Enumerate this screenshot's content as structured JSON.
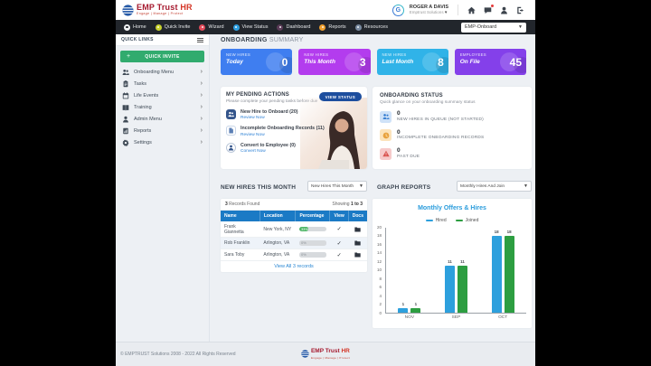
{
  "header": {
    "brand": {
      "emp": "EMP",
      "trust": " Trust ",
      "hr": "HR",
      "tagline": "Engage | Manage | Protect"
    },
    "user": {
      "name": "ROGER A DAVIS",
      "org": "Emptrust Solutions",
      "caret": "⌄",
      "avatar_letter": "G"
    }
  },
  "navbar": {
    "items": [
      {
        "label": "Home",
        "color": "#f2f4f6",
        "light": true
      },
      {
        "label": "Quick Invite",
        "color": "#c8d22e",
        "light": false
      },
      {
        "label": "Wizard",
        "color": "#e04b5a",
        "light": false
      },
      {
        "label": "View Status",
        "color": "#2e9fe0",
        "light": false
      },
      {
        "label": "Dashboard",
        "color": "#5a3b57",
        "light": false
      },
      {
        "label": "Reports",
        "color": "#f0a030",
        "light": false
      },
      {
        "label": "Resources",
        "color": "#7a8ba0",
        "light": false
      }
    ],
    "product_select": "EMP-Onboard"
  },
  "sidebar": {
    "quick_links_title": "QUICK LINKS",
    "quick_invite_label": "QUICK INVITE",
    "quick_invite_plus": "+",
    "items": [
      {
        "label": "Onboarding Menu",
        "icon": "people-icon"
      },
      {
        "label": "Tasks",
        "icon": "clipboard-icon"
      },
      {
        "label": "Life Events",
        "icon": "calendar-icon"
      },
      {
        "label": "Training",
        "icon": "book-icon"
      },
      {
        "label": "Admin Menu",
        "icon": "user-icon"
      },
      {
        "label": "Reports",
        "icon": "report-icon"
      },
      {
        "label": "Settings",
        "icon": "gear-icon"
      }
    ],
    "chevron": "›"
  },
  "summary": {
    "title_bold": "ONBOARDING",
    "title_light": " SUMMARY",
    "cards": [
      {
        "label": "NEW HIRES",
        "sublabel": "Today",
        "value": "0",
        "color": "#3f7ef0"
      },
      {
        "label": "NEW HIRES",
        "sublabel": "This Month",
        "value": "3",
        "color": "#b33cee"
      },
      {
        "label": "NEW HIRES",
        "sublabel": "Last Month",
        "value": "8",
        "color": "#30b3e8"
      },
      {
        "label": "EMPLOYEES",
        "sublabel": "On File",
        "value": "45",
        "color": "#8440ea"
      }
    ]
  },
  "pending_actions": {
    "title": "MY PENDING ACTIONS",
    "subtitle": "Please complete your pending tasks before due",
    "view_status_button": "VIEW STATUS",
    "items": [
      {
        "label": "New Hire to Onboard (20)",
        "action": "Review Now",
        "icon": "people-icon"
      },
      {
        "label": "Incomplete Onboarding Records (11)",
        "action": "Review Now",
        "icon": "document-icon"
      },
      {
        "label": "Convert to Employee (0)",
        "action": "Convert Now",
        "icon": "user-icon"
      }
    ]
  },
  "onboarding_status": {
    "title": "ONBOARDING STATUS",
    "subtitle": "Quick glance on your onboarding summary status",
    "items": [
      {
        "value": "0",
        "label": "NEW HIRES IN QUEUE (NOT STARTED)",
        "icon": "queue-people-icon"
      },
      {
        "value": "0",
        "label": "INCOMPLETE ONBOARDING RECORDS",
        "icon": "clock-icon"
      },
      {
        "value": "0",
        "label": "PAST DUE",
        "icon": "warning-triangle-icon"
      }
    ]
  },
  "new_hires": {
    "title": "NEW HIRES THIS MONTH",
    "filter_select": "New Hires This Month",
    "records_count": "3",
    "records_found_label": " Records Found",
    "showing_label": "Showing ",
    "showing_range": "1 to 3",
    "columns": [
      "Name",
      "Location",
      "Percentage",
      "View",
      "Docs"
    ],
    "rows": [
      {
        "name": "Frank Giannetta",
        "location": "New York, NY",
        "percentage": 33
      },
      {
        "name": "Rob Franklin",
        "location": "Arlington, VA",
        "percentage": 0
      },
      {
        "name": "Sara Toby",
        "location": "Arlington, VA",
        "percentage": 0
      }
    ],
    "check_glyph": "✓",
    "view_all_label": "View All 3 records"
  },
  "graph_reports": {
    "title": "GRAPH REPORTS",
    "filter_select": "Monthly Hires And Join"
  },
  "chart_data": {
    "type": "bar",
    "title": "Monthly Offers & Hires",
    "categories": [
      "NOV",
      "SEP",
      "OCT"
    ],
    "series": [
      {
        "name": "Hired",
        "color": "#2da0dd",
        "values": [
          1,
          11,
          18
        ]
      },
      {
        "name": "Joined",
        "color": "#2d9e41",
        "values": [
          1,
          11,
          18
        ]
      }
    ],
    "ylim": [
      0,
      20
    ],
    "ytick_step": 2,
    "legend_position": "top",
    "grid": false
  },
  "footer": {
    "copyright": "© EMPTRUST Solutions 2008 - 2022 All Rights Reserved",
    "brand": {
      "emp": "EMP",
      "trust": " Trust ",
      "hr": "HR",
      "tagline": "Engage | Manage | Protect"
    }
  },
  "colors": {
    "accent_green": "#31ab6e",
    "table_header_blue": "#1b7ac5",
    "link_blue": "#2a87d3",
    "view_status_navy": "#1d4e9e",
    "pct_fill_green": "#4cb564"
  }
}
